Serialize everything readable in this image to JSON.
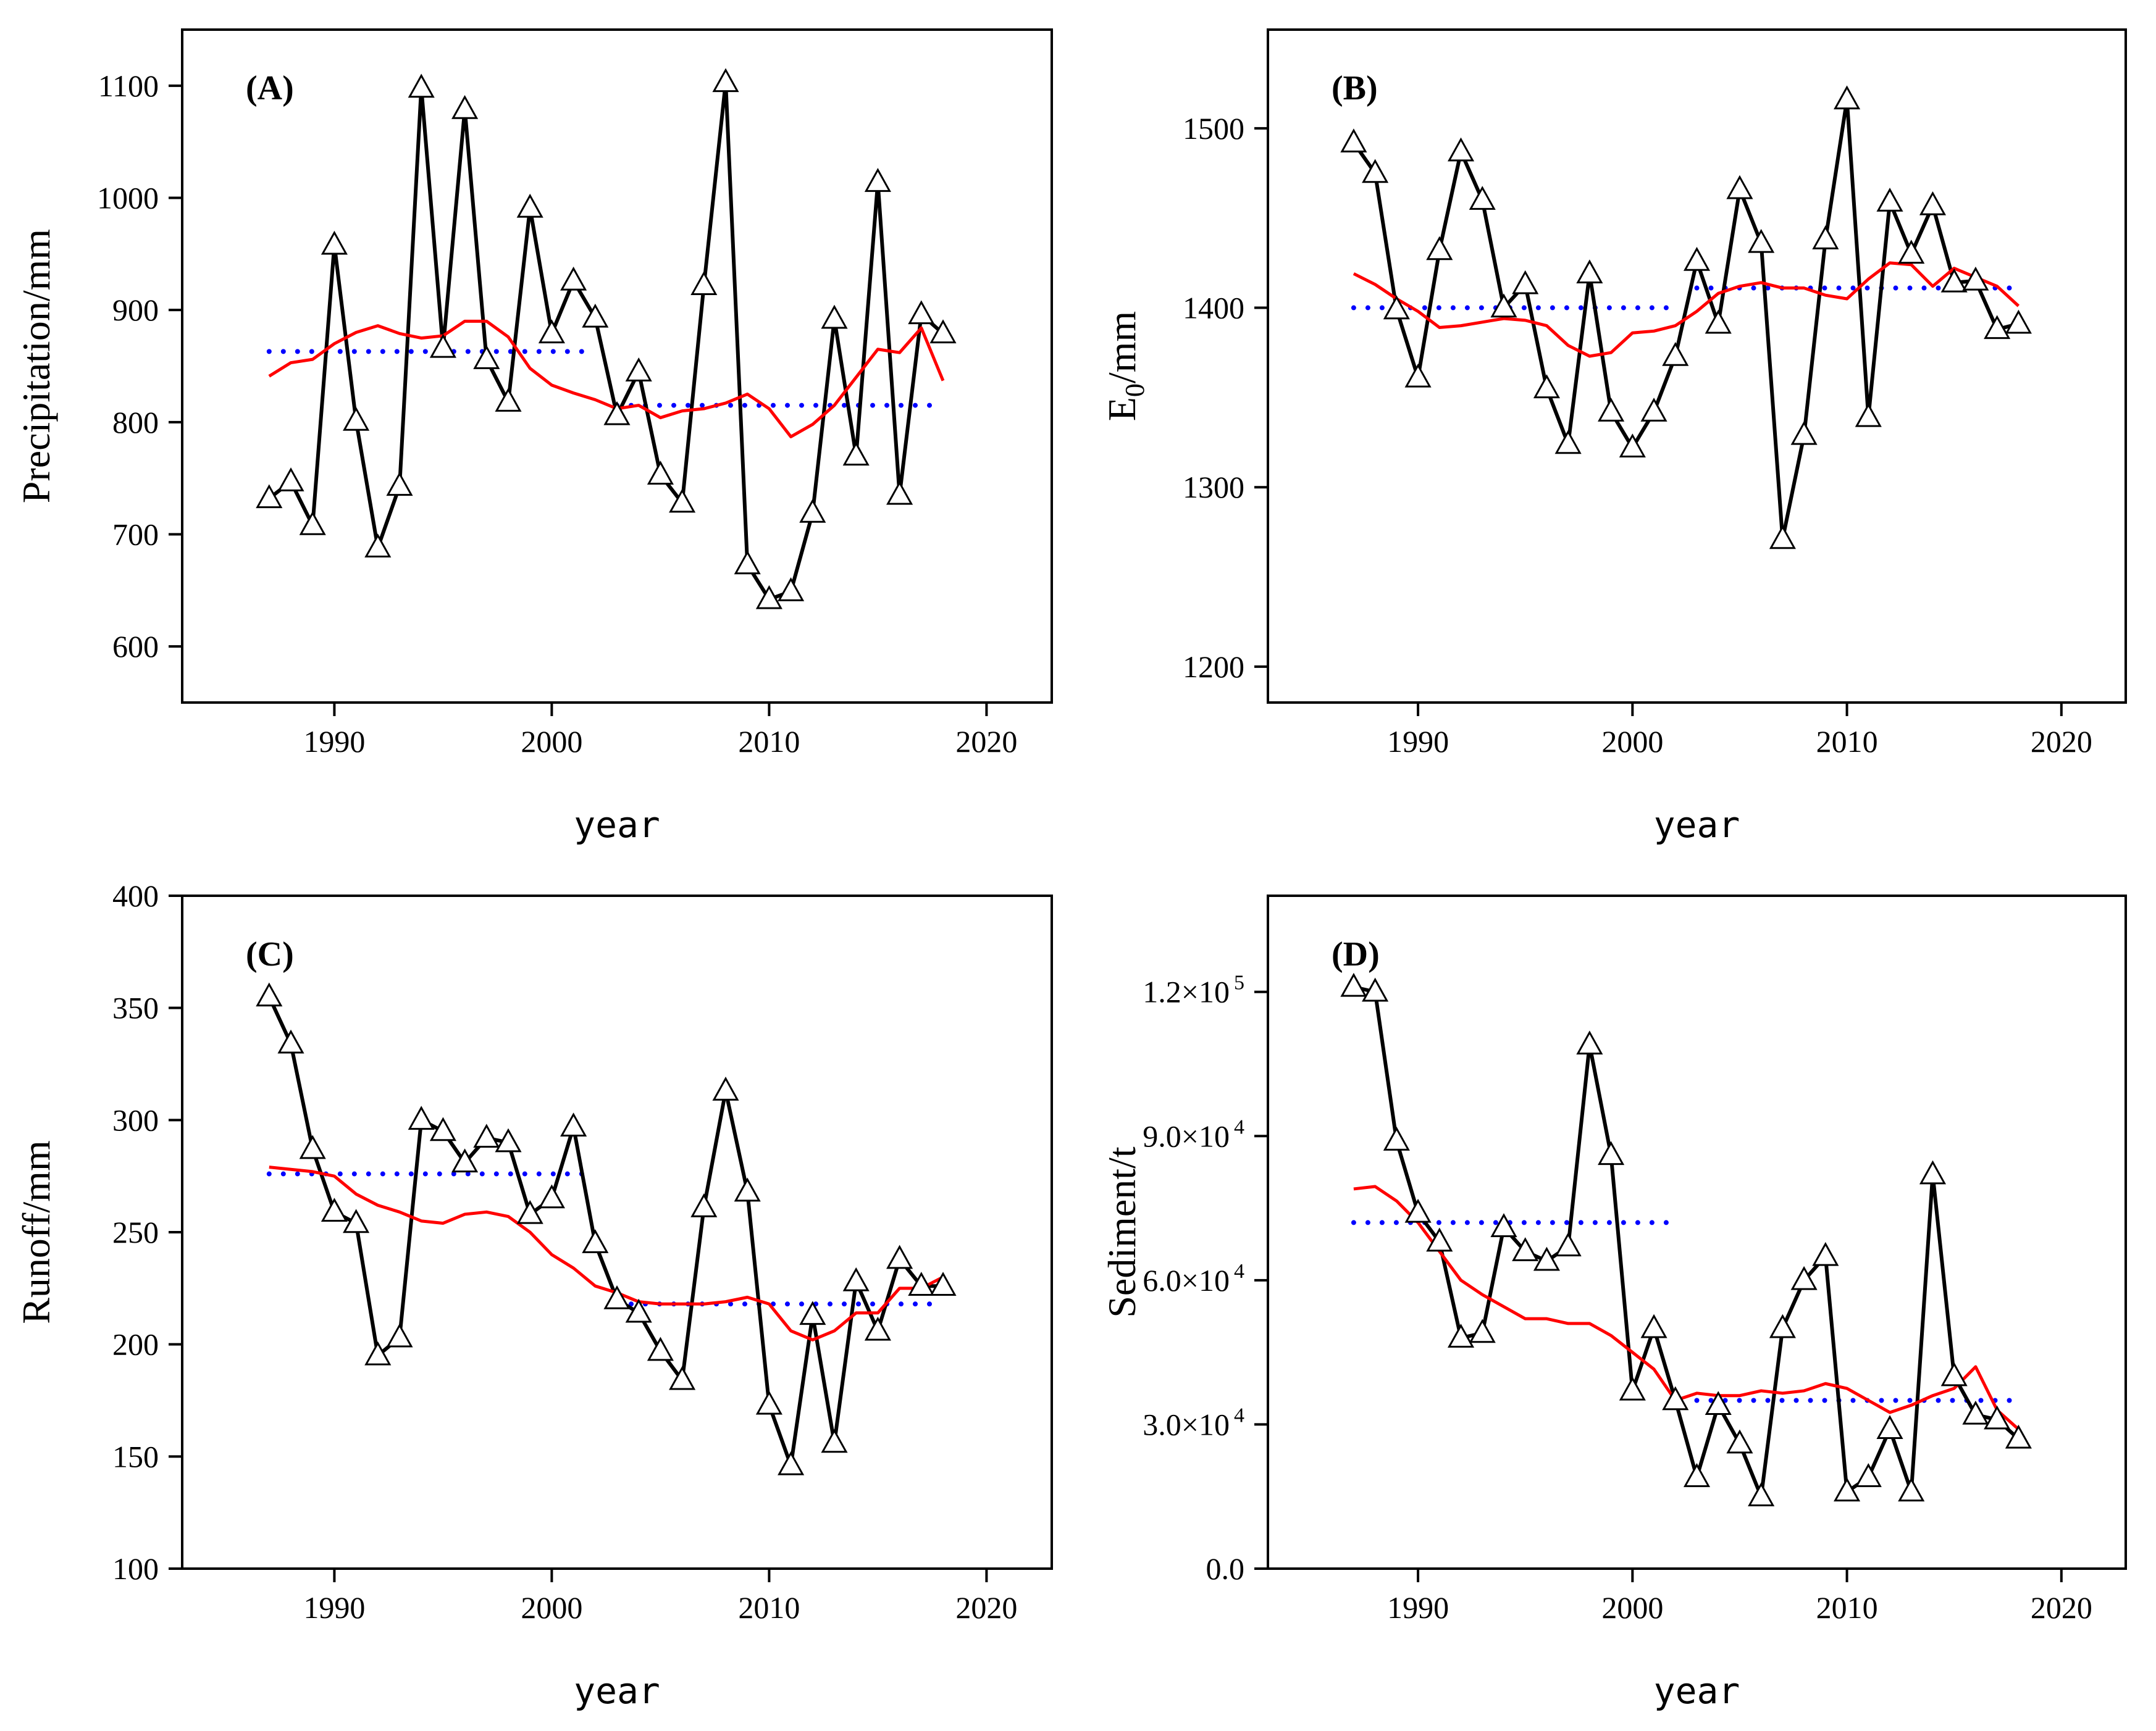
{
  "style": {
    "observed_color": "#000000",
    "smooth_color": "#ff0000",
    "mean_color": "#0000ff",
    "marker": "open-triangle"
  },
  "chart_data": [
    {
      "type": "line",
      "panel_label": "(A)",
      "xlabel": "year",
      "ylabel": "Precipitation/mm",
      "xlim": [
        1983,
        2023
      ],
      "ylim": [
        550,
        1150
      ],
      "xticks": [
        {
          "v": 1990,
          "label": "1990"
        },
        {
          "v": 2000,
          "label": "2000"
        },
        {
          "v": 2010,
          "label": "2010"
        },
        {
          "v": 2020,
          "label": "2020"
        }
      ],
      "yticks": [
        {
          "v": 600,
          "label": "600"
        },
        {
          "v": 700,
          "label": "700"
        },
        {
          "v": 800,
          "label": "800"
        },
        {
          "v": 900,
          "label": "900"
        },
        {
          "v": 1000,
          "label": "1000"
        },
        {
          "v": 1100,
          "label": "1100"
        }
      ],
      "years": [
        1987,
        1988,
        1989,
        1990,
        1991,
        1992,
        1993,
        1994,
        1995,
        1996,
        1997,
        1998,
        1999,
        2000,
        2001,
        2002,
        2003,
        2004,
        2005,
        2006,
        2007,
        2008,
        2009,
        2010,
        2011,
        2012,
        2013,
        2014,
        2015,
        2016,
        2017,
        2018
      ],
      "values": [
        732,
        747,
        708,
        958,
        801,
        688,
        743,
        1098,
        866,
        1079,
        856,
        818,
        991,
        879,
        926,
        893,
        806,
        845,
        753,
        728,
        922,
        1103,
        673,
        642,
        649,
        719,
        892,
        770,
        1014,
        735,
        896,
        879
      ],
      "smooth": [
        841,
        853,
        856,
        870,
        880,
        886,
        879,
        875,
        877,
        890,
        890,
        876,
        848,
        833,
        826,
        820,
        812,
        815,
        804,
        810,
        812,
        817,
        825,
        812,
        787,
        798,
        815,
        840,
        865,
        862,
        884,
        837
      ],
      "means": [
        {
          "from": 1987,
          "to": 2002,
          "value": 863
        },
        {
          "from": 2003,
          "to": 2018,
          "value": 815
        }
      ],
      "grid": false
    },
    {
      "type": "line",
      "panel_label": "(B)",
      "xlabel": "year",
      "ylabel": "E",
      "ylabel_sub": "0",
      "ylabel_suffix": "/mm",
      "xlim": [
        1983,
        2023
      ],
      "ylim": [
        1180,
        1555
      ],
      "xticks": [
        {
          "v": 1990,
          "label": "1990"
        },
        {
          "v": 2000,
          "label": "2000"
        },
        {
          "v": 2010,
          "label": "2010"
        },
        {
          "v": 2020,
          "label": "2020"
        }
      ],
      "yticks": [
        {
          "v": 1200,
          "label": "1200"
        },
        {
          "v": 1300,
          "label": "1300"
        },
        {
          "v": 1400,
          "label": "1400"
        },
        {
          "v": 1500,
          "label": "1500"
        }
      ],
      "years": [
        1987,
        1988,
        1989,
        1990,
        1991,
        1992,
        1993,
        1994,
        1995,
        1996,
        1997,
        1998,
        1999,
        2000,
        2001,
        2002,
        2003,
        2004,
        2005,
        2006,
        2007,
        2008,
        2009,
        2010,
        2011,
        2012,
        2013,
        2014,
        2015,
        2016,
        2017,
        2018
      ],
      "values": [
        1492,
        1475,
        1399,
        1361,
        1432,
        1487,
        1460,
        1400,
        1413,
        1355,
        1324,
        1419,
        1342,
        1322,
        1342,
        1373,
        1426,
        1391,
        1466,
        1436,
        1271,
        1329,
        1438,
        1516,
        1339,
        1459,
        1430,
        1457,
        1414,
        1415,
        1388,
        1391
      ],
      "smooth": [
        1419,
        1413,
        1405,
        1398,
        1389,
        1390,
        1392,
        1394,
        1393,
        1390,
        1379,
        1373,
        1375,
        1386,
        1387,
        1390,
        1398,
        1408,
        1412,
        1414,
        1411,
        1411,
        1407,
        1405,
        1416,
        1425,
        1424,
        1412,
        1422,
        1417,
        1412,
        1401
      ],
      "means": [
        {
          "from": 1987,
          "to": 2002,
          "value": 1400
        },
        {
          "from": 2003,
          "to": 2018,
          "value": 1411
        }
      ],
      "grid": false
    },
    {
      "type": "line",
      "panel_label": "(C)",
      "xlabel": "year",
      "ylabel": "Runoff/mm",
      "xlim": [
        1983,
        2023
      ],
      "ylim": [
        100,
        400
      ],
      "xticks": [
        {
          "v": 1990,
          "label": "1990"
        },
        {
          "v": 2000,
          "label": "2000"
        },
        {
          "v": 2010,
          "label": "2010"
        },
        {
          "v": 2020,
          "label": "2020"
        }
      ],
      "yticks": [
        {
          "v": 100,
          "label": "100"
        },
        {
          "v": 150,
          "label": "150"
        },
        {
          "v": 200,
          "label": "200"
        },
        {
          "v": 250,
          "label": "250"
        },
        {
          "v": 300,
          "label": "300"
        },
        {
          "v": 350,
          "label": "350"
        },
        {
          "v": 400,
          "label": "400"
        }
      ],
      "years": [
        1987,
        1988,
        1989,
        1990,
        1991,
        1992,
        1993,
        1994,
        1995,
        1996,
        1997,
        1998,
        1999,
        2000,
        2001,
        2002,
        2003,
        2004,
        2005,
        2006,
        2007,
        2008,
        2009,
        2010,
        2011,
        2012,
        2013,
        2014,
        2015,
        2016,
        2017,
        2018
      ],
      "values": [
        355,
        334,
        287,
        259,
        254,
        195,
        203,
        300,
        295,
        281,
        292,
        290,
        258,
        265,
        297,
        245,
        220,
        214,
        197,
        184,
        261,
        313,
        268,
        173,
        146,
        213,
        156,
        228,
        206,
        238,
        226,
        226
      ],
      "smooth": [
        279,
        278,
        277,
        275,
        267,
        262,
        259,
        255,
        254,
        258,
        259,
        257,
        250,
        240,
        234,
        226,
        223,
        219,
        218,
        218,
        218,
        219,
        221,
        218,
        206,
        202,
        206,
        214,
        214,
        225,
        225,
        230
      ],
      "means": [
        {
          "from": 1987,
          "to": 2002,
          "value": 276
        },
        {
          "from": 2003,
          "to": 2018,
          "value": 218
        }
      ],
      "grid": false
    },
    {
      "type": "line",
      "panel_label": "(D)",
      "xlabel": "year",
      "ylabel": "Sediment/t",
      "xlim": [
        1983,
        2023
      ],
      "ylim": [
        0,
        140000
      ],
      "xticks": [
        {
          "v": 1990,
          "label": "1990"
        },
        {
          "v": 2000,
          "label": "2000"
        },
        {
          "v": 2010,
          "label": "2010"
        },
        {
          "v": 2020,
          "label": "2020"
        }
      ],
      "yticks": [
        {
          "v": 0,
          "label": "0.0"
        },
        {
          "v": 30000,
          "label": "3.0×10",
          "sup": "4"
        },
        {
          "v": 60000,
          "label": "6.0×10",
          "sup": "4"
        },
        {
          "v": 90000,
          "label": "9.0×10",
          "sup": "4"
        },
        {
          "v": 120000,
          "label": "1.2×10",
          "sup": "5"
        }
      ],
      "years": [
        1987,
        1988,
        1989,
        1990,
        1991,
        1992,
        1993,
        1994,
        1995,
        1996,
        1997,
        1998,
        1999,
        2000,
        2001,
        2002,
        2003,
        2004,
        2005,
        2006,
        2007,
        2008,
        2009,
        2010,
        2011,
        2012,
        2013,
        2014,
        2015,
        2016,
        2017,
        2018
      ],
      "values": [
        121000,
        120000,
        89000,
        74000,
        68000,
        48000,
        49000,
        71000,
        66000,
        64000,
        67000,
        109000,
        86000,
        37000,
        50000,
        35000,
        19000,
        34000,
        26000,
        15000,
        50000,
        60000,
        65000,
        16000,
        19000,
        29000,
        16000,
        82000,
        40000,
        32000,
        31000,
        27000
      ],
      "smooth": [
        79000,
        79500,
        76500,
        72000,
        66000,
        60000,
        57000,
        54500,
        52000,
        52000,
        51000,
        51000,
        48500,
        45000,
        41500,
        35000,
        36500,
        36000,
        36000,
        37000,
        36500,
        37000,
        38500,
        37500,
        35000,
        32500,
        34000,
        36000,
        37500,
        42000,
        33000,
        29000
      ],
      "means": [
        {
          "from": 1987,
          "to": 2002,
          "value": 72000
        },
        {
          "from": 2003,
          "to": 2018,
          "value": 35000
        }
      ],
      "grid": false
    }
  ]
}
